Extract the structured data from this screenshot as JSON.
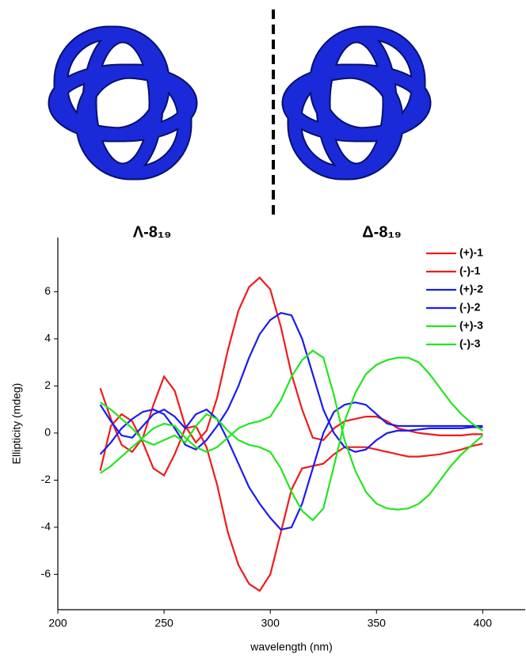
{
  "panel_labels": [
    "Λ-8₁₉",
    "Δ-8₁₉"
  ],
  "chart_data": {
    "type": "line",
    "x_label": "wavelength (nm)",
    "y_label": "Ellipticity (mdeg)",
    "x": [
      220,
      225,
      230,
      235,
      240,
      245,
      250,
      255,
      260,
      265,
      270,
      275,
      280,
      285,
      290,
      295,
      300,
      305,
      310,
      315,
      320,
      325,
      330,
      335,
      340,
      345,
      350,
      355,
      360,
      365,
      370,
      375,
      380,
      385,
      390,
      395,
      400
    ],
    "series": [
      {
        "name": "(+)-1",
        "color": "#ee1c1c",
        "values": [
          1.9,
          0.6,
          -0.5,
          -0.8,
          -0.2,
          1.2,
          2.4,
          1.8,
          0.3,
          -0.4,
          0.1,
          1.5,
          3.5,
          5.2,
          6.2,
          6.6,
          6.1,
          4.5,
          2.5,
          1.0,
          -0.2,
          -0.3,
          0.2,
          0.5,
          0.6,
          0.7,
          0.7,
          0.5,
          0.2,
          0.1,
          0.0,
          -0.05,
          -0.1,
          -0.1,
          -0.1,
          -0.05,
          -0.05
        ]
      },
      {
        "name": "(-)-1",
        "color": "#ee1c1c",
        "values": [
          -1.6,
          0.3,
          0.8,
          0.5,
          -0.4,
          -1.5,
          -1.8,
          -0.9,
          0.2,
          0.3,
          -0.6,
          -2.2,
          -4.2,
          -5.6,
          -6.4,
          -6.7,
          -6.0,
          -4.2,
          -2.4,
          -1.5,
          -1.4,
          -1.3,
          -0.9,
          -0.6,
          -0.6,
          -0.6,
          -0.7,
          -0.8,
          -0.9,
          -1.0,
          -1.0,
          -0.95,
          -0.9,
          -0.8,
          -0.7,
          -0.55,
          -0.45
        ]
      },
      {
        "name": "(+)-2",
        "color": "#1c1cee",
        "values": [
          -0.9,
          -0.4,
          0.2,
          0.6,
          0.9,
          1.0,
          0.8,
          0.2,
          -0.5,
          -0.7,
          -0.3,
          0.3,
          1.0,
          2.0,
          3.2,
          4.2,
          4.8,
          5.1,
          5.0,
          4.0,
          2.5,
          1.0,
          0.0,
          -0.6,
          -0.8,
          -0.7,
          -0.3,
          0.0,
          0.1,
          0.1,
          0.15,
          0.2,
          0.2,
          0.2,
          0.2,
          0.25,
          0.25
        ]
      },
      {
        "name": "(-)-2",
        "color": "#1c1cee",
        "values": [
          1.2,
          0.5,
          -0.1,
          -0.2,
          0.3,
          0.8,
          1.0,
          0.7,
          0.2,
          0.8,
          1.0,
          0.6,
          -0.3,
          -1.3,
          -2.3,
          -3.0,
          -3.6,
          -4.1,
          -4.0,
          -3.0,
          -1.5,
          0.0,
          0.9,
          1.2,
          1.3,
          1.2,
          0.8,
          0.4,
          0.3,
          0.3,
          0.3,
          0.3,
          0.3,
          0.3,
          0.3,
          0.3,
          0.3
        ]
      },
      {
        "name": "(+)-3",
        "color": "#22e61e",
        "values": [
          -1.7,
          -1.4,
          -1.0,
          -0.6,
          -0.2,
          0.2,
          0.4,
          0.3,
          -0.2,
          -0.6,
          -0.8,
          -0.6,
          -0.2,
          0.2,
          0.4,
          0.5,
          0.7,
          1.4,
          2.4,
          3.1,
          3.5,
          3.2,
          1.6,
          -0.3,
          -1.6,
          -2.5,
          -3.0,
          -3.2,
          -3.25,
          -3.2,
          -3.0,
          -2.6,
          -2.0,
          -1.4,
          -0.9,
          -0.5,
          -0.1
        ]
      },
      {
        "name": "(-)-3",
        "color": "#22e61e",
        "values": [
          1.3,
          1.0,
          0.6,
          0.2,
          -0.3,
          -0.5,
          -0.3,
          -0.1,
          -0.4,
          0.3,
          0.8,
          0.6,
          0.1,
          -0.3,
          -0.5,
          -0.6,
          -0.8,
          -1.5,
          -2.5,
          -3.3,
          -3.7,
          -3.2,
          -1.4,
          0.5,
          1.7,
          2.5,
          2.9,
          3.1,
          3.2,
          3.2,
          3.0,
          2.5,
          1.9,
          1.3,
          0.8,
          0.4,
          0.1
        ]
      }
    ],
    "xlim": [
      200,
      420
    ],
    "xticks": [
      200,
      250,
      300,
      350,
      400
    ],
    "ylim": [
      -7.5,
      8.3
    ],
    "yticks": [
      -6,
      -4,
      -2,
      0,
      2,
      4,
      6
    ],
    "legend": "top-right",
    "grid": false
  }
}
